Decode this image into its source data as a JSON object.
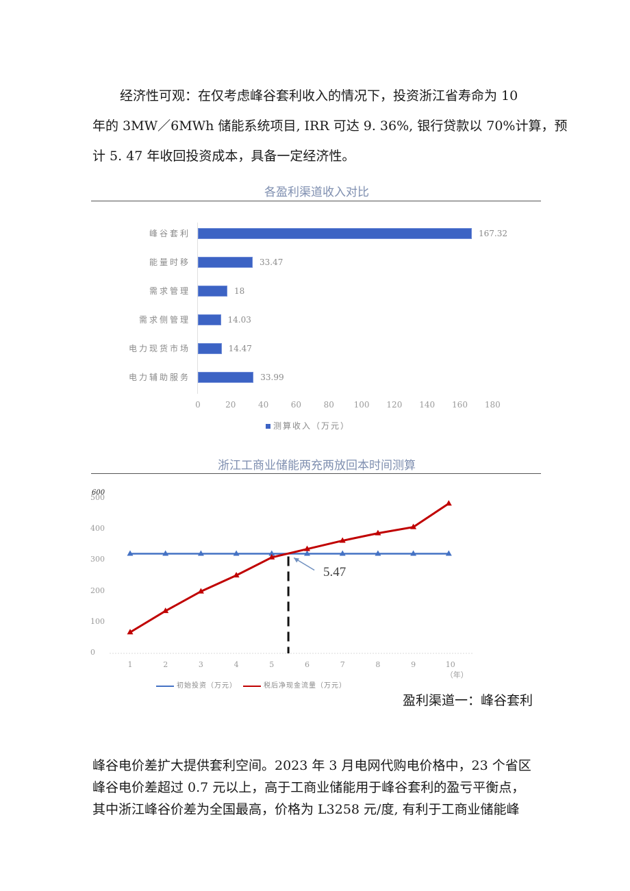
{
  "paragraph1": {
    "lines": [
      "经济性可观：在仅考虑峰谷套利收入的情况下，投资浙江省寿命为 10",
      "年的 3MW／6MWh 储能系统项目, IRR 可达 9. 36%, 银行贷款以 70%计算，预",
      "计 5. 47 年收回投资成本，具备一定经济性。"
    ]
  },
  "chart1": {
    "title": "各盈利渠道收入对比",
    "legend": "测算收入（万元）",
    "color": "#3c63c4",
    "x_ticks": [
      "0",
      "20",
      "40",
      "60",
      "80",
      "100",
      "120",
      "140",
      "160",
      "180"
    ]
  },
  "chart2": {
    "title": "浙江工商业储能两充两放回本时间测算",
    "y_ticks": [
      "600",
      "500",
      "400",
      "300",
      "200",
      "100",
      "0"
    ],
    "x_ticks": [
      "1",
      "2",
      "3",
      "4",
      "5",
      "6",
      "7",
      "8",
      "9",
      "10（年）"
    ],
    "annotation": "5.47",
    "legend": [
      "初始投资（万元）",
      "税后净现金流量（万元）"
    ],
    "colors": {
      "initial": "#4472c4",
      "cashflow": "#c00000"
    }
  },
  "caption": "盈利渠道一：峰谷套利",
  "paragraph2": {
    "lines": [
      "峰谷电价差扩大提供套利空间。2023 年 3 月电网代购电价格中，23 个省区",
      "峰谷电价差超过 0.7 元以上，高于工商业储能用于峰谷套利的盈亏平衡点，",
      "其中浙江峰谷价差为全国最高，价格为 L3258 元/度, 有利于工商业储能峰"
    ]
  },
  "chart_data": [
    {
      "type": "bar",
      "orientation": "horizontal",
      "title": "各盈利渠道收入对比",
      "categories": [
        "峰谷套利",
        "能量时移",
        "需求管理",
        "需求侧管理",
        "电力现货市场",
        "电力辅助服务"
      ],
      "values": [
        167.32,
        33.47,
        18,
        14.03,
        14.47,
        33.99
      ],
      "value_labels": [
        "167.32",
        "33.47",
        "18",
        "14.03",
        "14.47",
        "33.99"
      ],
      "legend": [
        "测算收入（万元）"
      ],
      "xlabel": "",
      "ylabel": "",
      "xlim": [
        0,
        180
      ],
      "x_ticks": [
        0,
        20,
        40,
        60,
        80,
        100,
        120,
        140,
        160,
        180
      ],
      "grid": false,
      "legend_position": "bottom"
    },
    {
      "type": "line",
      "title": "浙江工商业储能两充两放回本时间测算",
      "x": [
        1,
        2,
        3,
        4,
        5,
        6,
        7,
        8,
        9,
        10
      ],
      "x_tick_labels": [
        "1",
        "2",
        "3",
        "4",
        "5",
        "6",
        "7",
        "8",
        "9",
        "10（年）"
      ],
      "series": [
        {
          "name": "初始投资（万元）",
          "values": [
            322,
            322,
            322,
            322,
            322,
            322,
            322,
            322,
            322,
            322
          ],
          "color": "#4472c4",
          "marker": "triangle"
        },
        {
          "name": "税后净现金流量（万元）",
          "values": [
            68,
            137,
            200,
            252,
            310,
            337,
            364,
            388,
            408,
            484
          ],
          "color": "#c00000",
          "marker": "triangle"
        }
      ],
      "annotations": [
        {
          "text": "5.47",
          "x": 5.47,
          "y": 322,
          "note": "dashed vertical line at break-even, arrow pointing to intersection"
        }
      ],
      "ylim": [
        0,
        600
      ],
      "y_ticks": [
        0,
        100,
        200,
        300,
        400,
        500,
        600
      ],
      "grid": false,
      "legend_position": "bottom"
    }
  ]
}
